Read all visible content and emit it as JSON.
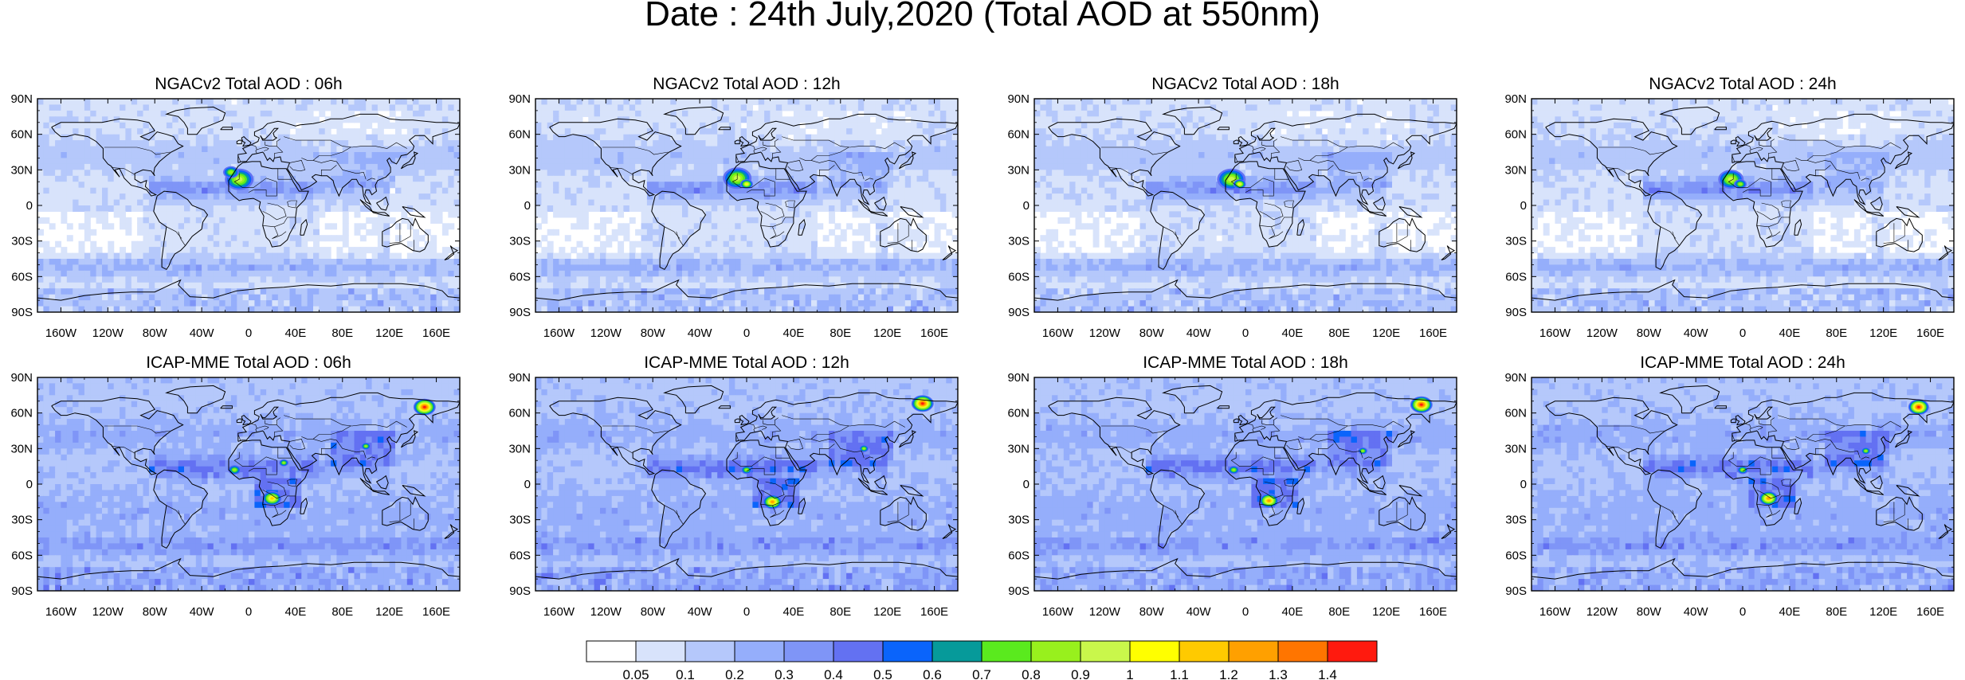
{
  "figure": {
    "title": "Date : 24th July,2020 (Total AOD at 550nm)"
  },
  "panels": [
    {
      "title": "NGACv2 Total AOD : 06h",
      "model": "NGACv2",
      "hour": "06h",
      "hotspots": [
        {
          "lon": -8,
          "lat": 22,
          "level": 0.9,
          "r": 18
        },
        {
          "lon": -15,
          "lat": 28,
          "level": 0.8,
          "r": 10
        }
      ]
    },
    {
      "title": "NGACv2 Total AOD : 12h",
      "model": "NGACv2",
      "hour": "12h",
      "hotspots": [
        {
          "lon": -8,
          "lat": 23,
          "level": 0.9,
          "r": 18
        },
        {
          "lon": 0,
          "lat": 18,
          "level": 1.0,
          "r": 8
        }
      ]
    },
    {
      "title": "NGACv2 Total AOD : 18h",
      "model": "NGACv2",
      "hour": "18h",
      "hotspots": [
        {
          "lon": -12,
          "lat": 22,
          "level": 0.9,
          "r": 18
        },
        {
          "lon": -5,
          "lat": 18,
          "level": 1.0,
          "r": 8
        }
      ]
    },
    {
      "title": "NGACv2 Total AOD : 24h",
      "model": "NGACv2",
      "hour": "24h",
      "hotspots": [
        {
          "lon": -10,
          "lat": 22,
          "level": 0.9,
          "r": 16
        },
        {
          "lon": -2,
          "lat": 18,
          "level": 0.8,
          "r": 8
        }
      ]
    },
    {
      "title": "ICAP-MME Total AOD : 06h",
      "model": "ICAP-MME",
      "hour": "06h",
      "hotspots": [
        {
          "lon": 150,
          "lat": 65,
          "level": 1.4,
          "r": 14
        },
        {
          "lon": 20,
          "lat": -12,
          "level": 1.1,
          "r": 12
        },
        {
          "lon": -12,
          "lat": 12,
          "level": 0.8,
          "r": 8
        },
        {
          "lon": 30,
          "lat": 18,
          "level": 0.8,
          "r": 6
        },
        {
          "lon": 100,
          "lat": 32,
          "level": 0.8,
          "r": 6
        }
      ]
    },
    {
      "title": "ICAP-MME Total AOD : 12h",
      "model": "ICAP-MME",
      "hour": "12h",
      "hotspots": [
        {
          "lon": 150,
          "lat": 68,
          "level": 1.4,
          "r": 14
        },
        {
          "lon": 22,
          "lat": -15,
          "level": 1.2,
          "r": 12
        },
        {
          "lon": 0,
          "lat": 12,
          "level": 0.8,
          "r": 7
        },
        {
          "lon": 100,
          "lat": 30,
          "level": 0.8,
          "r": 6
        }
      ]
    },
    {
      "title": "ICAP-MME Total AOD : 18h",
      "model": "ICAP-MME",
      "hour": "18h",
      "hotspots": [
        {
          "lon": 150,
          "lat": 67,
          "level": 1.4,
          "r": 14
        },
        {
          "lon": 20,
          "lat": -14,
          "level": 1.2,
          "r": 12
        },
        {
          "lon": -10,
          "lat": 12,
          "level": 0.8,
          "r": 7
        },
        {
          "lon": 100,
          "lat": 28,
          "level": 0.8,
          "r": 6
        }
      ]
    },
    {
      "title": "ICAP-MME Total AOD : 24h",
      "model": "ICAP-MME",
      "hour": "24h",
      "hotspots": [
        {
          "lon": 150,
          "lat": 65,
          "level": 1.4,
          "r": 13
        },
        {
          "lon": 22,
          "lat": -12,
          "level": 1.2,
          "r": 12
        },
        {
          "lon": 0,
          "lat": 12,
          "level": 0.8,
          "r": 7
        },
        {
          "lon": 105,
          "lat": 28,
          "level": 0.8,
          "r": 6
        }
      ]
    }
  ],
  "axes": {
    "lat_labels": [
      "90N",
      "60N",
      "30N",
      "0",
      "30S",
      "60S",
      "90S"
    ],
    "lat_values": [
      90,
      60,
      30,
      0,
      -30,
      -60,
      -90
    ],
    "lon_labels": [
      "160W",
      "120W",
      "80W",
      "40W",
      "0",
      "40E",
      "80E",
      "120E",
      "160E"
    ],
    "lon_values": [
      -160,
      -120,
      -80,
      -40,
      0,
      40,
      80,
      120,
      160
    ],
    "lon_range": [
      -180,
      180
    ],
    "lat_range": [
      -90,
      90
    ]
  },
  "colorbar": {
    "labels": [
      "0.05",
      "0.1",
      "0.2",
      "0.3",
      "0.4",
      "0.5",
      "0.6",
      "0.7",
      "0.8",
      "0.9",
      "1",
      "1.1",
      "1.2",
      "1.3",
      "1.4"
    ],
    "colors": [
      "#ffffff",
      "#d8e3fb",
      "#b5c8fb",
      "#95aefb",
      "#7f95f7",
      "#6371f2",
      "#0a64fb",
      "#069a9a",
      "#5aea1e",
      "#98f01d",
      "#c9f74b",
      "#ffff00",
      "#ffca00",
      "#ffa000",
      "#ff7500",
      "#ff1a0e"
    ]
  }
}
